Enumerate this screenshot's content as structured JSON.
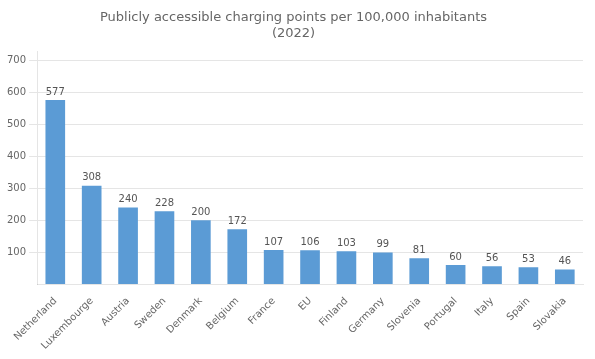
{
  "chart_data": {
    "type": "bar",
    "title": "Publicly accessible charging points per 100,000 inhabitants\n(2022)",
    "categories": [
      "Netherland",
      "Luxembourge",
      "Austria",
      "Sweden",
      "Denmark",
      "Belgium",
      "France",
      "EU",
      "Finland",
      "Germany",
      "Slovenia",
      "Portugal",
      "Italy",
      "Spain",
      "Slovakia"
    ],
    "values": [
      577,
      308,
      240,
      228,
      200,
      172,
      107,
      106,
      103,
      99,
      81,
      60,
      56,
      53,
      46
    ],
    "color": "#5B9BD5",
    "ylim": [
      0,
      730
    ],
    "yticks": [
      100,
      200,
      300,
      400,
      500,
      600,
      700
    ],
    "grid": true,
    "data_labels": true
  }
}
